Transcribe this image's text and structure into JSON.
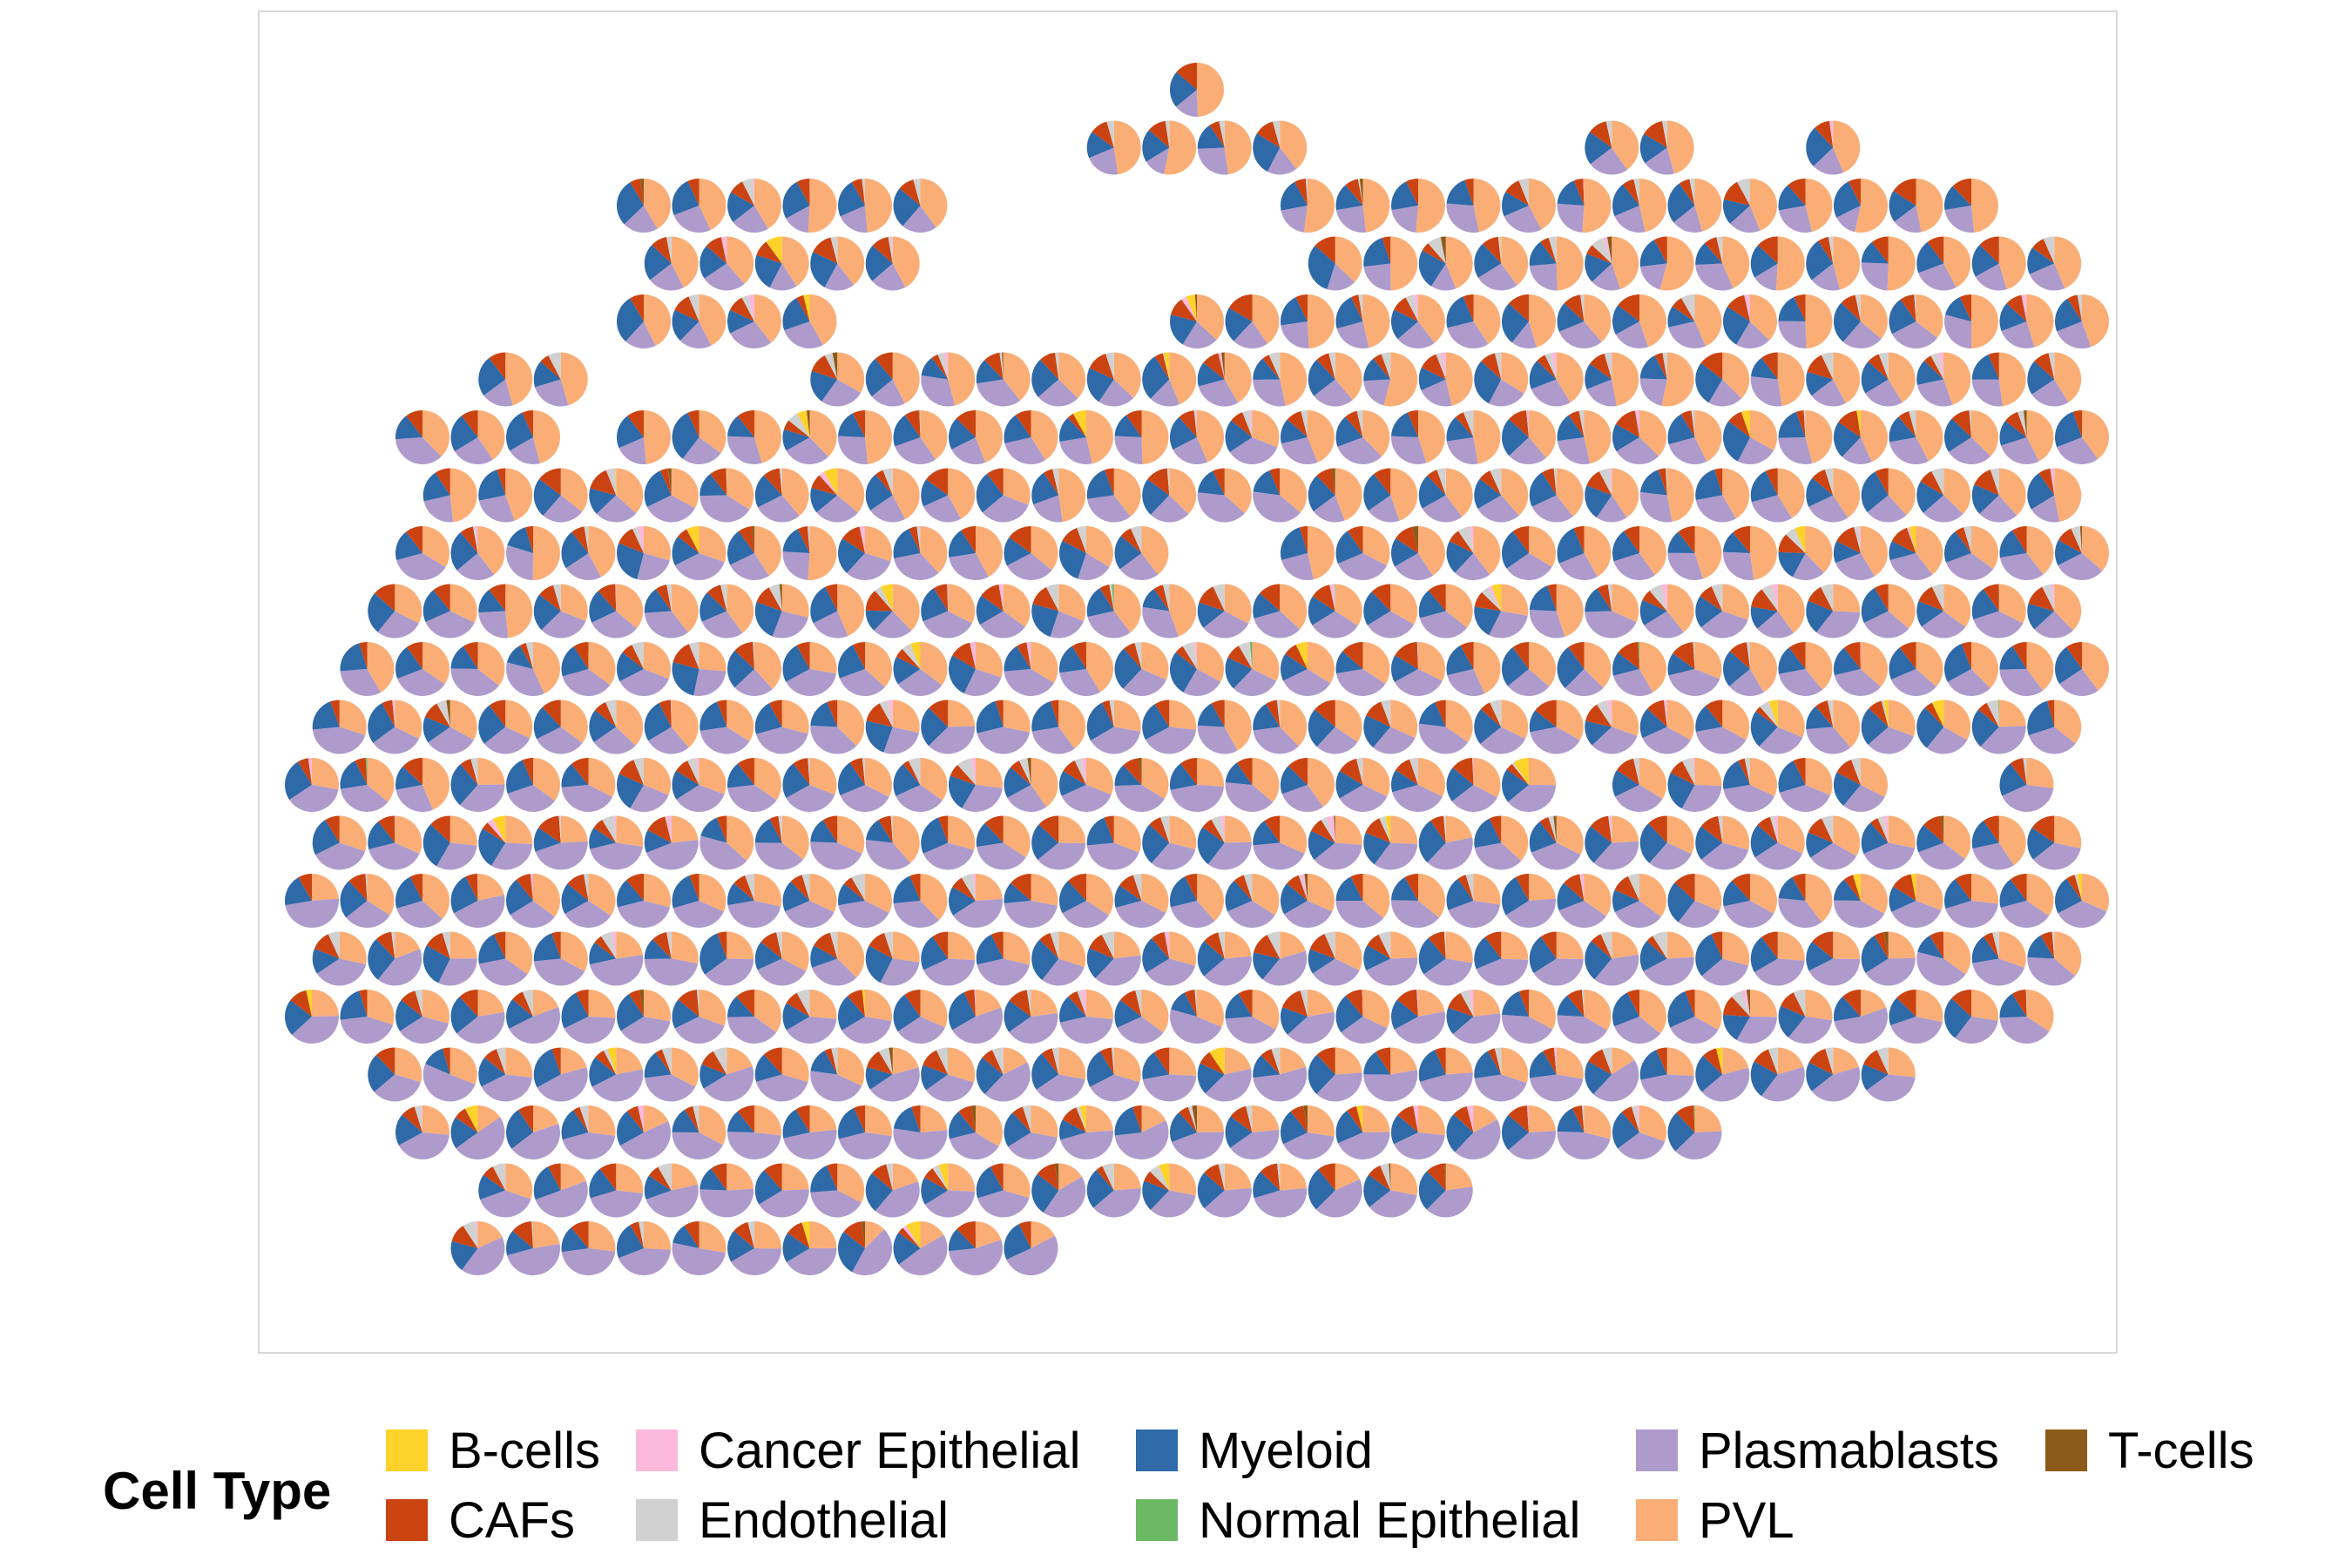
{
  "chart_data": {
    "type": "spatial-pie-scatter",
    "title": "",
    "xlabel": "",
    "ylabel": "",
    "grid": false,
    "legend_title": "Cell Type",
    "legend_position": "bottom",
    "categories": [
      "B-cells",
      "Cancer Epithelial",
      "Myeloid",
      "Plasmablasts",
      "T-cells",
      "CAFs",
      "Endothelial",
      "Normal Epithelial",
      "PVL"
    ],
    "colors": {
      "B-cells": "#FDD22A",
      "Cancer Epithelial": "#FBB9DC",
      "Myeloid": "#2E69A8",
      "Plasmablasts": "#AE9BCB",
      "T-cells": "#8C5A19",
      "CAFs": "#CB4311",
      "Endothelial": "#D1D1D1",
      "Normal Epithelial": "#6BBA63",
      "PVL": "#FAAE76"
    },
    "note_of_layout": "spots on an offset lattice; rows 1..22 from top, columns indexed 0..30",
    "spots": {
      "rows": [
        {
          "r": 0,
          "cols": [
            14
          ]
        },
        {
          "r": 1,
          "cols": [
            12,
            13,
            14,
            15,
            21,
            22,
            25
          ]
        },
        {
          "r": 2,
          "cols": [
            4,
            5,
            6,
            7,
            8,
            9,
            16,
            17,
            18,
            19,
            20,
            21,
            22,
            23,
            24,
            25,
            26,
            27,
            28
          ]
        },
        {
          "r": 3,
          "cols": [
            4,
            5,
            6,
            7,
            8,
            16,
            17,
            18,
            19,
            20,
            21,
            22,
            23,
            24,
            25,
            26,
            27,
            28,
            29
          ]
        },
        {
          "r": 4,
          "cols": [
            4,
            5,
            6,
            7,
            14,
            15,
            16,
            17,
            18,
            19,
            20,
            21,
            22,
            23,
            24,
            25,
            26,
            27,
            28,
            29,
            30
          ]
        },
        {
          "r": 5,
          "cols": [
            1,
            2,
            7,
            8,
            9,
            10,
            11,
            12,
            13,
            14,
            15,
            16,
            17,
            18,
            19,
            20,
            21,
            22,
            23,
            24,
            25,
            26,
            27,
            28,
            29
          ]
        },
        {
          "r": 6,
          "cols": [
            0,
            1,
            2,
            4,
            5,
            6,
            7,
            8,
            9,
            10,
            11,
            12,
            13,
            14,
            15,
            16,
            17,
            18,
            19,
            20,
            21,
            22,
            23,
            24,
            25,
            26,
            27,
            28,
            29,
            30
          ]
        },
        {
          "r": 7,
          "cols": [
            0,
            1,
            2,
            3,
            4,
            5,
            6,
            7,
            8,
            9,
            10,
            11,
            12,
            13,
            14,
            15,
            16,
            17,
            18,
            19,
            20,
            21,
            22,
            23,
            24,
            25,
            26,
            27,
            28,
            29,
            30,
            31
          ]
        },
        {
          "r": 8,
          "cols": [
            0,
            1,
            2,
            3,
            4,
            5,
            6,
            7,
            8,
            9,
            10,
            11,
            12,
            13,
            16,
            17,
            18,
            19,
            20,
            21,
            22,
            23,
            24,
            25,
            26,
            27,
            28,
            29,
            30,
            31
          ]
        },
        {
          "r": 9,
          "cols": [
            -1,
            0,
            1,
            2,
            3,
            4,
            5,
            6,
            7,
            8,
            9,
            10,
            11,
            12,
            13,
            14,
            15,
            16,
            17,
            18,
            19,
            20,
            21,
            22,
            23,
            24,
            25,
            26,
            27,
            28,
            29,
            30,
            31
          ]
        },
        {
          "r": 10,
          "cols": [
            -1,
            0,
            1,
            2,
            3,
            4,
            5,
            6,
            7,
            8,
            9,
            10,
            11,
            12,
            13,
            14,
            15,
            16,
            17,
            18,
            19,
            20,
            21,
            22,
            23,
            24,
            25,
            26,
            27,
            28,
            29,
            30,
            31
          ]
        },
        {
          "r": 11,
          "cols": [
            -3,
            -2,
            -1,
            0,
            1,
            2,
            3,
            4,
            5,
            6,
            7,
            8,
            9,
            10,
            11,
            12,
            13,
            14,
            15,
            16,
            17,
            18,
            19,
            20,
            21,
            22,
            23,
            24,
            25,
            26,
            27,
            28,
            29,
            30,
            31
          ]
        },
        {
          "r": 12,
          "cols": [
            -4,
            -3,
            -2,
            -1,
            0,
            1,
            2,
            3,
            4,
            5,
            6,
            7,
            8,
            9,
            10,
            11,
            12,
            13,
            14,
            15,
            16,
            17,
            18,
            19,
            20,
            22,
            23,
            24,
            25,
            26,
            29
          ]
        },
        {
          "r": 13,
          "cols": [
            -4,
            -3,
            -2,
            -1,
            0,
            1,
            2,
            3,
            4,
            5,
            6,
            7,
            8,
            9,
            10,
            11,
            12,
            13,
            14,
            15,
            16,
            17,
            18,
            19,
            20,
            21,
            22,
            23,
            24,
            25,
            26,
            27,
            28,
            29,
            30,
            31
          ]
        },
        {
          "r": 14,
          "cols": [
            -4,
            -3,
            -2,
            -1,
            0,
            1,
            2,
            3,
            4,
            5,
            6,
            7,
            8,
            9,
            10,
            11,
            12,
            13,
            14,
            15,
            16,
            17,
            18,
            19,
            20,
            21,
            22,
            23,
            24,
            25,
            26,
            27,
            28,
            29,
            30
          ]
        },
        {
          "r": 15,
          "cols": [
            -4,
            -2,
            -1,
            0,
            1,
            2,
            3,
            4,
            5,
            6,
            7,
            8,
            9,
            10,
            11,
            12,
            13,
            14,
            15,
            16,
            17,
            18,
            19,
            20,
            21,
            22,
            23,
            24,
            25,
            26,
            27,
            28,
            29
          ]
        },
        {
          "r": 16,
          "cols": [
            -2,
            -1,
            0,
            1,
            2,
            3,
            4,
            5,
            6,
            7,
            8,
            9,
            10,
            11,
            12,
            13,
            14,
            15,
            16,
            17,
            18,
            19,
            20,
            21,
            22,
            23,
            24,
            25,
            26,
            27,
            28,
            29
          ]
        },
        {
          "r": 17,
          "cols": [
            -1,
            0,
            1,
            2,
            3,
            4,
            5,
            6,
            7,
            8,
            9,
            10,
            11,
            12,
            13,
            14,
            15,
            16,
            17,
            18,
            19,
            20,
            21,
            22,
            23,
            24,
            25,
            26
          ]
        },
        {
          "r": 18,
          "cols": [
            0,
            1,
            2,
            3,
            4,
            5,
            6,
            7,
            8,
            9,
            10,
            11,
            12,
            13,
            14,
            15,
            16,
            17,
            18,
            19,
            20,
            21,
            22,
            23
          ]
        },
        {
          "r": 19,
          "cols": [
            1,
            2,
            3,
            4,
            5,
            6,
            7,
            8,
            9,
            10,
            11,
            12,
            13,
            14,
            15,
            16,
            17,
            18
          ]
        },
        {
          "r": 20,
          "cols": [
            1,
            2,
            3,
            4,
            5,
            6,
            7,
            8,
            9,
            10,
            11
          ]
        }
      ]
    }
  },
  "legend": {
    "title": "Cell Type",
    "items": [
      {
        "label": "B-cells",
        "color": "#FDD22A"
      },
      {
        "label": "CAFs",
        "color": "#CB4311"
      },
      {
        "label": "Cancer Epithelial",
        "color": "#FBB9DC"
      },
      {
        "label": "Endothelial",
        "color": "#D1D1D1"
      },
      {
        "label": "Myeloid",
        "color": "#2E69A8"
      },
      {
        "label": "Normal Epithelial",
        "color": "#6BBA63"
      },
      {
        "label": "Plasmablasts",
        "color": "#AE9BCB"
      },
      {
        "label": "PVL",
        "color": "#FAAE76"
      },
      {
        "label": "T-cells",
        "color": "#8C5A19"
      }
    ]
  }
}
